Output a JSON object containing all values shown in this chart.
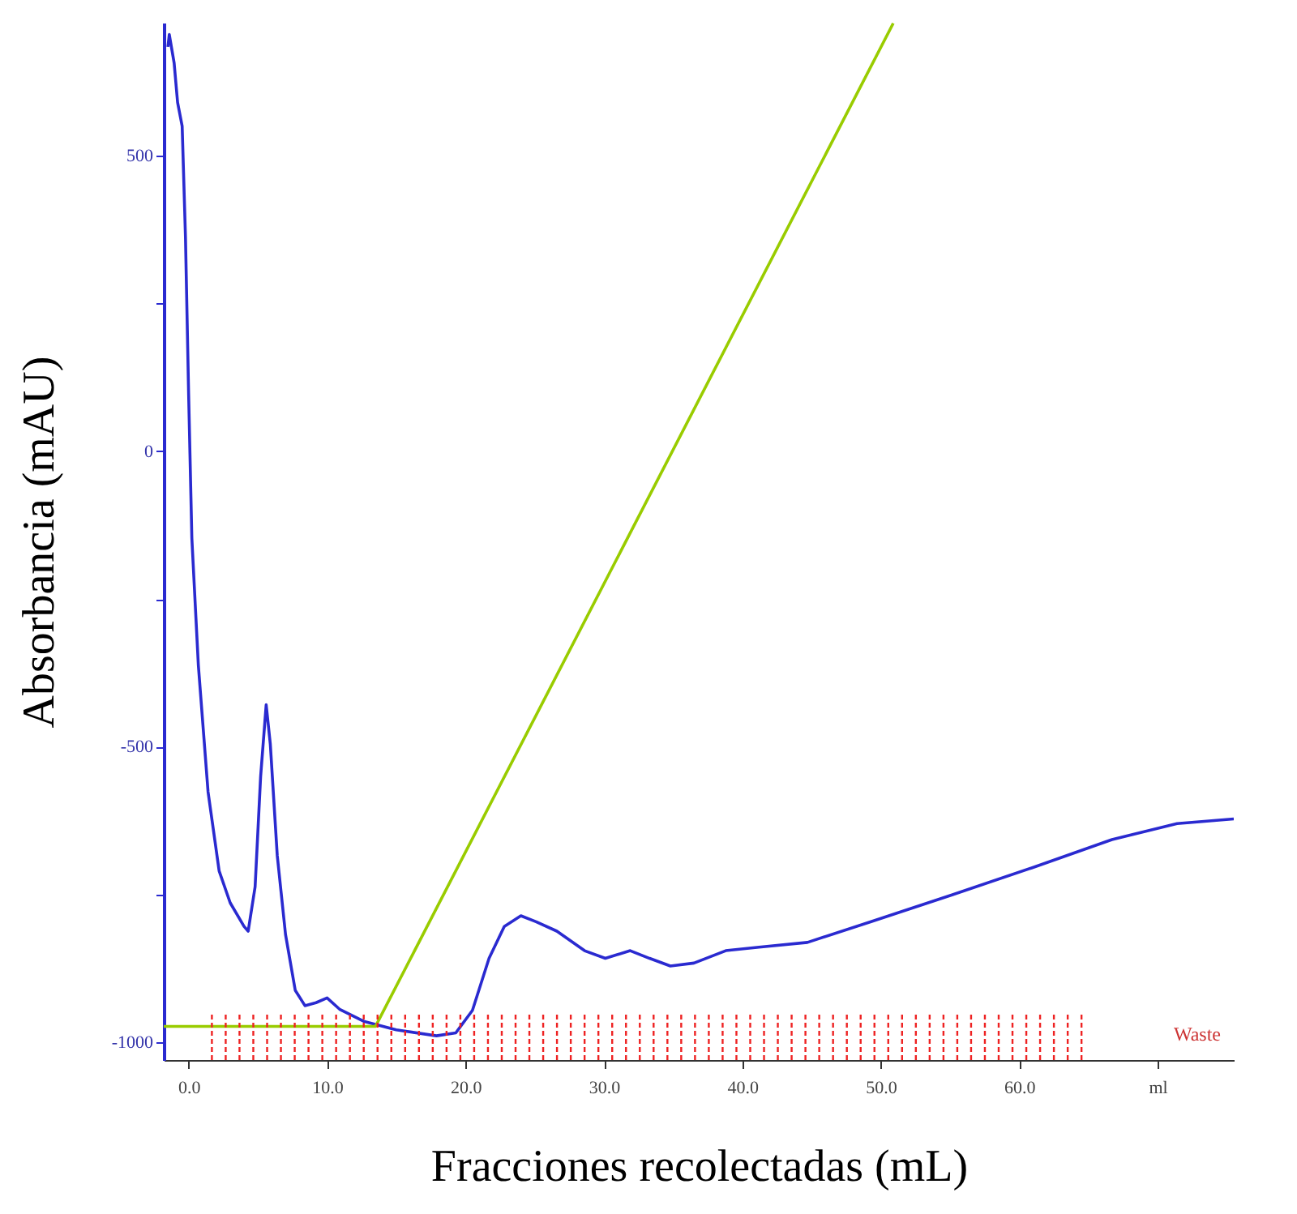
{
  "chart_data": {
    "type": "line",
    "xlabel": "Fracciones recolectadas (mL)",
    "ylabel": "Absorbancia (mAU)",
    "xlim": [
      -1.8,
      75.5
    ],
    "ylim": [
      -1030,
      725
    ],
    "xticks": [
      {
        "value": 0,
        "label": "0.0"
      },
      {
        "value": 10,
        "label": "10.0"
      },
      {
        "value": 20,
        "label": "20.0"
      },
      {
        "value": 30,
        "label": "30.0"
      },
      {
        "value": 40,
        "label": "40.0"
      },
      {
        "value": 50,
        "label": "50.0"
      },
      {
        "value": 60,
        "label": "60.0"
      },
      {
        "value": 70,
        "label": "ml"
      }
    ],
    "yticks": [
      -1000,
      {
        "value": -750,
        "label": null
      },
      -500,
      {
        "value": -250,
        "label": null
      },
      0,
      {
        "value": 250,
        "label": null
      },
      500
    ],
    "grid": false,
    "marker": "none",
    "line_style": "solid",
    "series": [
      {
        "color": "#2a2ad0",
        "x": [
          -1.5,
          -1.4,
          -1.05,
          -0.8,
          -0.47,
          -0.23,
          0,
          0.23,
          0.7,
          1.4,
          2.2,
          3.0,
          4.0,
          4.3,
          4.8,
          5.2,
          5.6,
          5.9,
          6.4,
          7.0,
          7.7,
          8.4,
          9.2,
          10.0,
          10.9,
          12.7,
          15.0,
          17.9,
          19.3,
          20.5,
          21.7,
          22.8,
          24.0,
          25.1,
          26.6,
          28.6,
          30.1,
          31.9,
          33.3,
          34.8,
          36.5,
          38.8,
          41.2,
          44.7,
          49.3,
          55.1,
          60.9,
          66.7,
          71.4,
          75.5
        ],
        "values": [
          684,
          705,
          657,
          590,
          550,
          362,
          94,
          -147,
          -362,
          -576,
          -710,
          -764,
          -804,
          -812,
          -737,
          -550,
          -429,
          -496,
          -684,
          -818,
          -912,
          -938,
          -933,
          -925,
          -944,
          -965,
          -979,
          -989,
          -984,
          -946,
          -858,
          -804,
          -786,
          -796,
          -812,
          -845,
          -858,
          -845,
          -858,
          -871,
          -866,
          -845,
          -839,
          -831,
          -796,
          -751,
          -705,
          -657,
          -630,
          -622
        ]
      },
      {
        "color": "#99cc00",
        "x": [
          -1.8,
          13.5,
          50.9
        ],
        "values": [
          -973,
          -973,
          724
        ]
      }
    ],
    "annotations": [
      "Waste"
    ]
  }
}
